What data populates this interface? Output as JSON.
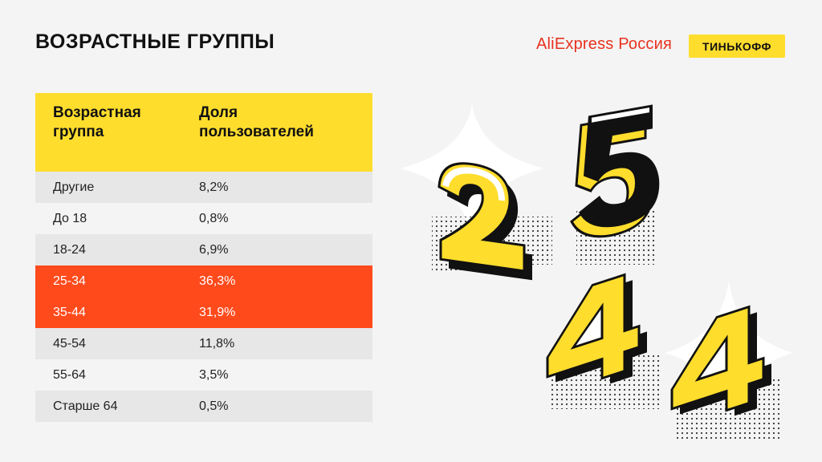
{
  "header": {
    "title": "ВОЗРАСТНЫЕ ГРУППЫ",
    "brand_aliexpress": "AliExpress Россия",
    "brand_tinkoff": "ТИНЬКОФФ"
  },
  "table": {
    "col1_line1": "Возрастная",
    "col1_line2": "группа",
    "col2_line1": "Доля",
    "col2_line2": "пользователей",
    "rows": [
      {
        "group": "Другие",
        "share": "8,2%"
      },
      {
        "group": "До 18",
        "share": "0,8%"
      },
      {
        "group": "18-24",
        "share": "6,9%"
      },
      {
        "group": "25-34",
        "share": "36,3%"
      },
      {
        "group": "35-44",
        "share": "31,9%"
      },
      {
        "group": "45-54",
        "share": "11,8%"
      },
      {
        "group": "55-64",
        "share": "3,5%"
      },
      {
        "group": "Старше 64",
        "share": "0,5%"
      }
    ]
  },
  "colors": {
    "accent_yellow": "#ffdd2d",
    "highlight_orange": "#ff4a1c",
    "brand_red": "#e8321e"
  },
  "decoration": {
    "numbers": [
      "2",
      "5",
      "4",
      "4"
    ]
  }
}
